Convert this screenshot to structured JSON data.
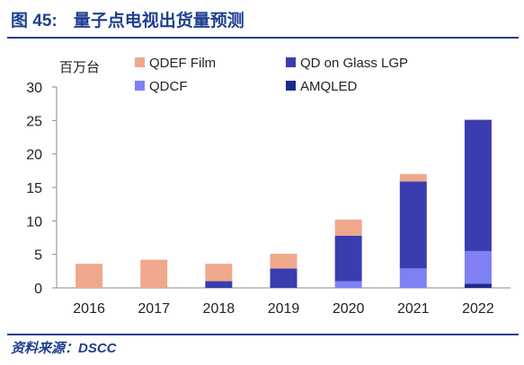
{
  "figure": {
    "number": "图 45:",
    "title": "量子点电视出货量预测",
    "source": "资料来源：DSCC"
  },
  "colors": {
    "frame": "#1f3f8f",
    "QDEF Film": "#f0a88c",
    "QD on Glass LGP": "#3a3cb0",
    "QDCF": "#8080f5",
    "AMQLED": "#1c2a8c"
  },
  "chart_data": {
    "type": "bar",
    "stacked": true,
    "categories": [
      "2016",
      "2017",
      "2018",
      "2019",
      "2020",
      "2021",
      "2022"
    ],
    "series": [
      {
        "name": "AMQLED",
        "values": [
          0,
          0,
          0,
          0,
          0,
          0,
          0.6
        ]
      },
      {
        "name": "QDCF",
        "values": [
          0,
          0,
          0,
          0,
          1.0,
          2.9,
          4.9
        ]
      },
      {
        "name": "QD on Glass LGP",
        "values": [
          0,
          0,
          1.0,
          2.9,
          6.8,
          13.0,
          19.6
        ]
      },
      {
        "name": "QDEF Film",
        "values": [
          3.6,
          4.2,
          2.6,
          2.2,
          2.4,
          1.1,
          0
        ]
      }
    ],
    "ylabel": "百万台",
    "ylim": [
      0,
      30
    ],
    "yticks": [
      0,
      5,
      10,
      15,
      20,
      25,
      30
    ],
    "legend": {
      "placement": "top",
      "entries": [
        "QDEF Film",
        "QD on Glass LGP",
        "QDCF",
        "AMQLED"
      ]
    },
    "grid": false
  }
}
